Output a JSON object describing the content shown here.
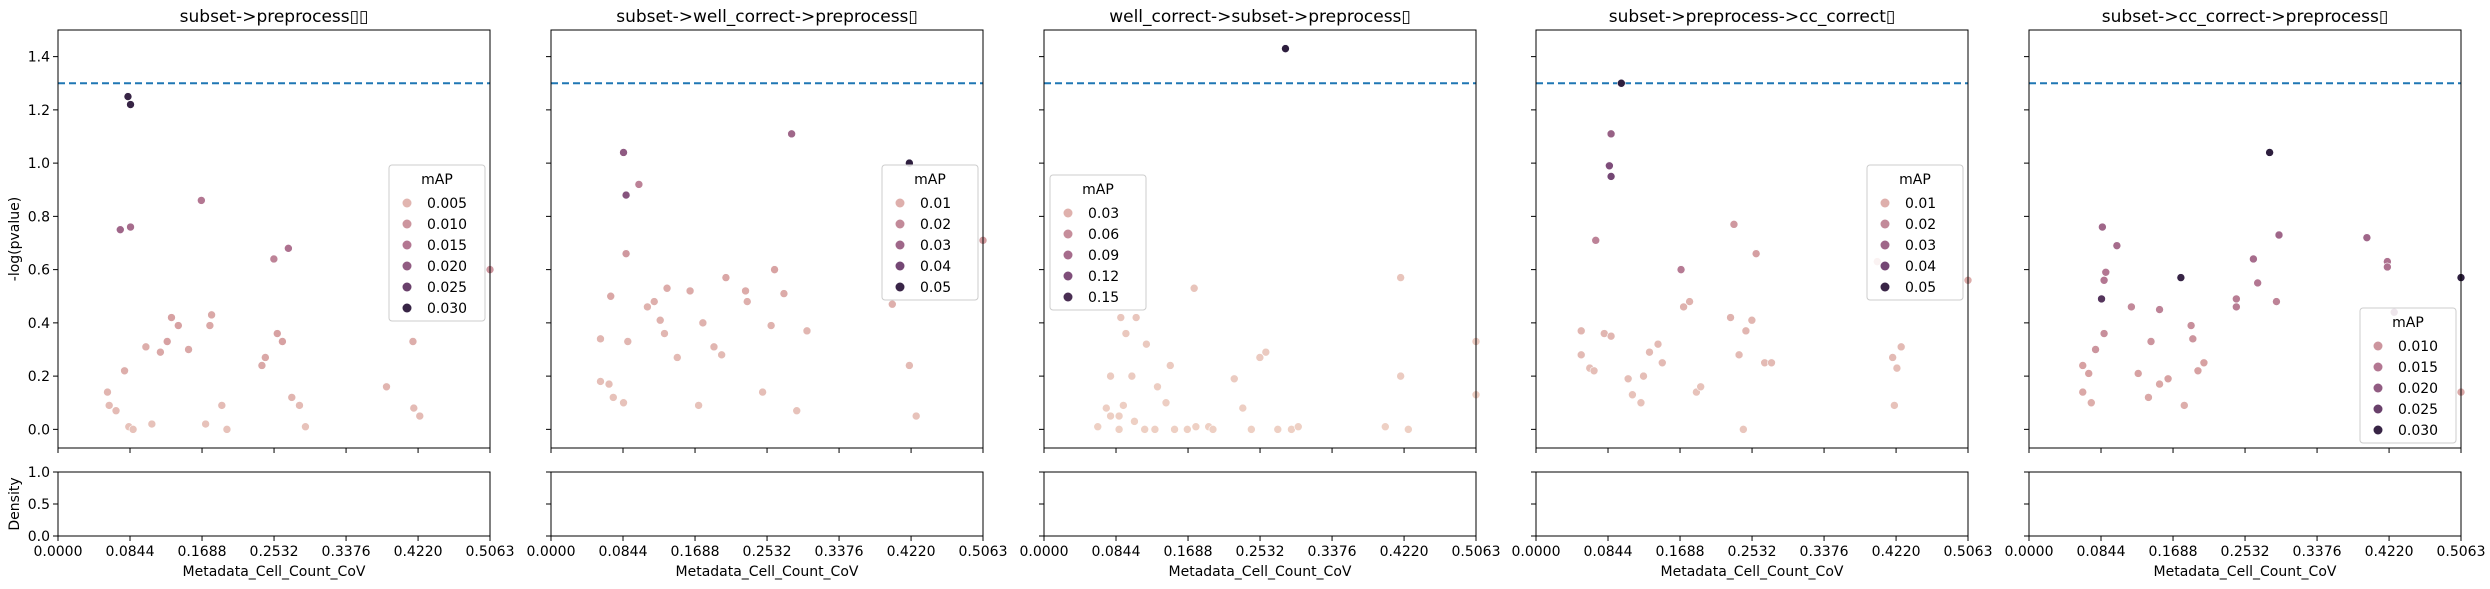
{
  "x_axis": {
    "label": "Metadata_Cell_Count_CoV",
    "ticks": [
      0,
      0.0844,
      0.1688,
      0.2532,
      0.3376,
      0.422,
      0.5063
    ],
    "tick_labels": [
      "0.0000",
      "0.0844",
      "0.1688",
      "0.2532",
      "0.3376",
      "0.4220",
      "0.5063"
    ],
    "lim": [
      0,
      0.5063
    ]
  },
  "y_axis": {
    "label": "-log(pvalue)",
    "ticks": [
      0,
      0.2,
      0.4,
      0.6,
      0.8,
      1.0,
      1.2,
      1.4
    ],
    "tick_labels": [
      "0.0",
      "0.2",
      "0.4",
      "0.6",
      "0.8",
      "1.0",
      "1.2",
      "1.4"
    ],
    "lim": [
      -0.07,
      1.5
    ]
  },
  "density_axis": {
    "label": "Density",
    "ticks": [
      0,
      0.5,
      1.0
    ],
    "tick_labels": [
      "0.0",
      "0.5",
      "1.0"
    ],
    "lim": [
      0,
      1
    ]
  },
  "threshold": {
    "value": 1.3,
    "color": "#1f77b4",
    "style": "dashed"
  },
  "colors": {
    "low": "#f0d5c8",
    "high": "#2d1e3e",
    "threshold_line": "#1f77b4"
  },
  "chart_data": [
    {
      "type": "scatter",
      "title": "subset->preprocess▯▯",
      "legend": {
        "title": "mAP",
        "position": "center-right",
        "entries": [
          "0.005",
          "0.010",
          "0.015",
          "0.020",
          "0.025",
          "0.030"
        ],
        "values": [
          0.005,
          0.01,
          0.015,
          0.02,
          0.025,
          0.03
        ]
      },
      "cmax": 0.031,
      "points": [
        {
          "x": 0.082,
          "y": 1.25,
          "c": 0.03
        },
        {
          "x": 0.085,
          "y": 1.22,
          "c": 0.03
        },
        {
          "x": 0.073,
          "y": 0.75,
          "c": 0.018
        },
        {
          "x": 0.085,
          "y": 0.76,
          "c": 0.017
        },
        {
          "x": 0.168,
          "y": 0.86,
          "c": 0.015
        },
        {
          "x": 0.27,
          "y": 0.68,
          "c": 0.016
        },
        {
          "x": 0.253,
          "y": 0.64,
          "c": 0.013
        },
        {
          "x": 0.078,
          "y": 0.22,
          "c": 0.006
        },
        {
          "x": 0.058,
          "y": 0.14,
          "c": 0.005
        },
        {
          "x": 0.06,
          "y": 0.09,
          "c": 0.004
        },
        {
          "x": 0.068,
          "y": 0.07,
          "c": 0.004
        },
        {
          "x": 0.083,
          "y": 0.01,
          "c": 0.003
        },
        {
          "x": 0.088,
          "y": 0.0,
          "c": 0.003
        },
        {
          "x": 0.103,
          "y": 0.31,
          "c": 0.006
        },
        {
          "x": 0.12,
          "y": 0.29,
          "c": 0.007
        },
        {
          "x": 0.128,
          "y": 0.33,
          "c": 0.008
        },
        {
          "x": 0.133,
          "y": 0.42,
          "c": 0.008
        },
        {
          "x": 0.141,
          "y": 0.39,
          "c": 0.008
        },
        {
          "x": 0.153,
          "y": 0.3,
          "c": 0.007
        },
        {
          "x": 0.11,
          "y": 0.02,
          "c": 0.003
        },
        {
          "x": 0.18,
          "y": 0.43,
          "c": 0.007
        },
        {
          "x": 0.178,
          "y": 0.39,
          "c": 0.007
        },
        {
          "x": 0.192,
          "y": 0.09,
          "c": 0.004
        },
        {
          "x": 0.173,
          "y": 0.02,
          "c": 0.003
        },
        {
          "x": 0.198,
          "y": 0.0,
          "c": 0.003
        },
        {
          "x": 0.239,
          "y": 0.24,
          "c": 0.007
        },
        {
          "x": 0.243,
          "y": 0.27,
          "c": 0.007
        },
        {
          "x": 0.257,
          "y": 0.36,
          "c": 0.008
        },
        {
          "x": 0.263,
          "y": 0.33,
          "c": 0.008
        },
        {
          "x": 0.274,
          "y": 0.12,
          "c": 0.005
        },
        {
          "x": 0.283,
          "y": 0.09,
          "c": 0.004
        },
        {
          "x": 0.29,
          "y": 0.01,
          "c": 0.003
        },
        {
          "x": 0.385,
          "y": 0.16,
          "c": 0.005
        },
        {
          "x": 0.416,
          "y": 0.33,
          "c": 0.006
        },
        {
          "x": 0.417,
          "y": 0.08,
          "c": 0.004
        },
        {
          "x": 0.424,
          "y": 0.05,
          "c": 0.004
        },
        {
          "x": 0.5063,
          "y": 0.6,
          "c": 0.01
        }
      ]
    },
    {
      "type": "scatter",
      "title": "subset->well_correct->preprocess▯",
      "legend": {
        "title": "mAP",
        "position": "center-right",
        "entries": [
          "0.01",
          "0.02",
          "0.03",
          "0.04",
          "0.05"
        ],
        "values": [
          0.01,
          0.02,
          0.03,
          0.04,
          0.05
        ]
      },
      "cmax": 0.052,
      "points": [
        {
          "x": 0.42,
          "y": 1.0,
          "c": 0.052
        },
        {
          "x": 0.282,
          "y": 1.11,
          "c": 0.03
        },
        {
          "x": 0.085,
          "y": 1.04,
          "c": 0.034
        },
        {
          "x": 0.088,
          "y": 0.88,
          "c": 0.036
        },
        {
          "x": 0.103,
          "y": 0.92,
          "c": 0.022
        },
        {
          "x": 0.088,
          "y": 0.66,
          "c": 0.016
        },
        {
          "x": 0.07,
          "y": 0.5,
          "c": 0.012
        },
        {
          "x": 0.058,
          "y": 0.34,
          "c": 0.008
        },
        {
          "x": 0.09,
          "y": 0.33,
          "c": 0.008
        },
        {
          "x": 0.058,
          "y": 0.18,
          "c": 0.006
        },
        {
          "x": 0.068,
          "y": 0.17,
          "c": 0.006
        },
        {
          "x": 0.073,
          "y": 0.12,
          "c": 0.005
        },
        {
          "x": 0.085,
          "y": 0.1,
          "c": 0.005
        },
        {
          "x": 0.113,
          "y": 0.46,
          "c": 0.009
        },
        {
          "x": 0.121,
          "y": 0.48,
          "c": 0.01
        },
        {
          "x": 0.136,
          "y": 0.53,
          "c": 0.011
        },
        {
          "x": 0.128,
          "y": 0.41,
          "c": 0.009
        },
        {
          "x": 0.133,
          "y": 0.36,
          "c": 0.008
        },
        {
          "x": 0.148,
          "y": 0.27,
          "c": 0.007
        },
        {
          "x": 0.163,
          "y": 0.52,
          "c": 0.011
        },
        {
          "x": 0.178,
          "y": 0.4,
          "c": 0.009
        },
        {
          "x": 0.191,
          "y": 0.31,
          "c": 0.008
        },
        {
          "x": 0.2,
          "y": 0.28,
          "c": 0.007
        },
        {
          "x": 0.173,
          "y": 0.09,
          "c": 0.005
        },
        {
          "x": 0.205,
          "y": 0.57,
          "c": 0.012
        },
        {
          "x": 0.228,
          "y": 0.52,
          "c": 0.011
        },
        {
          "x": 0.23,
          "y": 0.48,
          "c": 0.01
        },
        {
          "x": 0.262,
          "y": 0.6,
          "c": 0.013
        },
        {
          "x": 0.273,
          "y": 0.51,
          "c": 0.011
        },
        {
          "x": 0.258,
          "y": 0.39,
          "c": 0.009
        },
        {
          "x": 0.248,
          "y": 0.14,
          "c": 0.006
        },
        {
          "x": 0.3,
          "y": 0.37,
          "c": 0.008
        },
        {
          "x": 0.288,
          "y": 0.07,
          "c": 0.005
        },
        {
          "x": 0.4,
          "y": 0.47,
          "c": 0.01
        },
        {
          "x": 0.42,
          "y": 0.24,
          "c": 0.007
        },
        {
          "x": 0.428,
          "y": 0.05,
          "c": 0.005
        },
        {
          "x": 0.5063,
          "y": 0.71,
          "c": 0.015
        }
      ]
    },
    {
      "type": "scatter",
      "title": "well_correct->subset->preprocess▯",
      "legend": {
        "title": "mAP",
        "position": "center-left",
        "entries": [
          "0.03",
          "0.06",
          "0.09",
          "0.12",
          "0.15"
        ],
        "values": [
          0.03,
          0.06,
          0.09,
          0.12,
          0.15
        ]
      },
      "cmax": 0.165,
      "points": [
        {
          "x": 0.283,
          "y": 1.43,
          "c": 0.165
        },
        {
          "x": 0.176,
          "y": 0.53,
          "c": 0.014
        },
        {
          "x": 0.418,
          "y": 0.57,
          "c": 0.014
        },
        {
          "x": 0.09,
          "y": 0.42,
          "c": 0.012
        },
        {
          "x": 0.108,
          "y": 0.42,
          "c": 0.012
        },
        {
          "x": 0.096,
          "y": 0.36,
          "c": 0.011
        },
        {
          "x": 0.12,
          "y": 0.32,
          "c": 0.01
        },
        {
          "x": 0.078,
          "y": 0.2,
          "c": 0.008
        },
        {
          "x": 0.103,
          "y": 0.2,
          "c": 0.008
        },
        {
          "x": 0.148,
          "y": 0.24,
          "c": 0.009
        },
        {
          "x": 0.133,
          "y": 0.16,
          "c": 0.007
        },
        {
          "x": 0.143,
          "y": 0.1,
          "c": 0.006
        },
        {
          "x": 0.073,
          "y": 0.08,
          "c": 0.006
        },
        {
          "x": 0.078,
          "y": 0.05,
          "c": 0.005
        },
        {
          "x": 0.088,
          "y": 0.05,
          "c": 0.005
        },
        {
          "x": 0.093,
          "y": 0.09,
          "c": 0.006
        },
        {
          "x": 0.063,
          "y": 0.01,
          "c": 0.004
        },
        {
          "x": 0.088,
          "y": 0.0,
          "c": 0.004
        },
        {
          "x": 0.106,
          "y": 0.03,
          "c": 0.004
        },
        {
          "x": 0.118,
          "y": 0.0,
          "c": 0.004
        },
        {
          "x": 0.13,
          "y": 0.0,
          "c": 0.004
        },
        {
          "x": 0.153,
          "y": 0.0,
          "c": 0.004
        },
        {
          "x": 0.168,
          "y": 0.0,
          "c": 0.004
        },
        {
          "x": 0.178,
          "y": 0.01,
          "c": 0.004
        },
        {
          "x": 0.193,
          "y": 0.01,
          "c": 0.004
        },
        {
          "x": 0.198,
          "y": 0.0,
          "c": 0.004
        },
        {
          "x": 0.223,
          "y": 0.19,
          "c": 0.008
        },
        {
          "x": 0.233,
          "y": 0.08,
          "c": 0.006
        },
        {
          "x": 0.243,
          "y": 0.0,
          "c": 0.004
        },
        {
          "x": 0.253,
          "y": 0.27,
          "c": 0.009
        },
        {
          "x": 0.26,
          "y": 0.29,
          "c": 0.009
        },
        {
          "x": 0.274,
          "y": 0.0,
          "c": 0.004
        },
        {
          "x": 0.29,
          "y": 0.0,
          "c": 0.004
        },
        {
          "x": 0.298,
          "y": 0.01,
          "c": 0.004
        },
        {
          "x": 0.4,
          "y": 0.01,
          "c": 0.004
        },
        {
          "x": 0.427,
          "y": 0.0,
          "c": 0.004
        },
        {
          "x": 0.418,
          "y": 0.2,
          "c": 0.008
        },
        {
          "x": 0.5063,
          "y": 0.33,
          "c": 0.01
        },
        {
          "x": 0.5063,
          "y": 0.13,
          "c": 0.007
        }
      ]
    },
    {
      "type": "scatter",
      "title": "subset->preprocess->cc_correct▯",
      "legend": {
        "title": "mAP",
        "position": "center-right",
        "entries": [
          "0.01",
          "0.02",
          "0.03",
          "0.04",
          "0.05"
        ],
        "values": [
          0.01,
          0.02,
          0.03,
          0.04,
          0.05
        ]
      },
      "cmax": 0.052,
      "points": [
        {
          "x": 0.1,
          "y": 1.3,
          "c": 0.052
        },
        {
          "x": 0.088,
          "y": 1.11,
          "c": 0.032
        },
        {
          "x": 0.086,
          "y": 0.99,
          "c": 0.038
        },
        {
          "x": 0.088,
          "y": 0.95,
          "c": 0.04
        },
        {
          "x": 0.07,
          "y": 0.71,
          "c": 0.022
        },
        {
          "x": 0.17,
          "y": 0.6,
          "c": 0.024
        },
        {
          "x": 0.232,
          "y": 0.77,
          "c": 0.016
        },
        {
          "x": 0.258,
          "y": 0.66,
          "c": 0.014
        },
        {
          "x": 0.053,
          "y": 0.37,
          "c": 0.008
        },
        {
          "x": 0.08,
          "y": 0.36,
          "c": 0.008
        },
        {
          "x": 0.088,
          "y": 0.35,
          "c": 0.008
        },
        {
          "x": 0.053,
          "y": 0.28,
          "c": 0.007
        },
        {
          "x": 0.063,
          "y": 0.23,
          "c": 0.006
        },
        {
          "x": 0.068,
          "y": 0.22,
          "c": 0.006
        },
        {
          "x": 0.108,
          "y": 0.19,
          "c": 0.006
        },
        {
          "x": 0.113,
          "y": 0.13,
          "c": 0.005
        },
        {
          "x": 0.123,
          "y": 0.1,
          "c": 0.005
        },
        {
          "x": 0.126,
          "y": 0.2,
          "c": 0.006
        },
        {
          "x": 0.133,
          "y": 0.29,
          "c": 0.007
        },
        {
          "x": 0.143,
          "y": 0.32,
          "c": 0.007
        },
        {
          "x": 0.148,
          "y": 0.25,
          "c": 0.007
        },
        {
          "x": 0.173,
          "y": 0.46,
          "c": 0.009
        },
        {
          "x": 0.18,
          "y": 0.48,
          "c": 0.009
        },
        {
          "x": 0.188,
          "y": 0.14,
          "c": 0.005
        },
        {
          "x": 0.193,
          "y": 0.16,
          "c": 0.005
        },
        {
          "x": 0.228,
          "y": 0.42,
          "c": 0.009
        },
        {
          "x": 0.238,
          "y": 0.28,
          "c": 0.007
        },
        {
          "x": 0.246,
          "y": 0.37,
          "c": 0.008
        },
        {
          "x": 0.253,
          "y": 0.41,
          "c": 0.008
        },
        {
          "x": 0.268,
          "y": 0.25,
          "c": 0.007
        },
        {
          "x": 0.276,
          "y": 0.25,
          "c": 0.007
        },
        {
          "x": 0.243,
          "y": 0.0,
          "c": 0.004
        },
        {
          "x": 0.418,
          "y": 0.27,
          "c": 0.007
        },
        {
          "x": 0.428,
          "y": 0.31,
          "c": 0.007
        },
        {
          "x": 0.423,
          "y": 0.23,
          "c": 0.006
        },
        {
          "x": 0.42,
          "y": 0.09,
          "c": 0.005
        },
        {
          "x": 0.4,
          "y": 0.63,
          "c": 0.012
        },
        {
          "x": 0.5063,
          "y": 0.56,
          "c": 0.011
        }
      ]
    },
    {
      "type": "scatter",
      "title": "subset->cc_correct->preprocess▯",
      "legend": {
        "title": "mAP",
        "position": "bottom-right",
        "entries": [
          "0.010",
          "0.015",
          "0.020",
          "0.025",
          "0.030"
        ],
        "values": [
          0.01,
          0.015,
          0.02,
          0.025,
          0.03
        ]
      },
      "cmax": 0.031,
      "points": [
        {
          "x": 0.282,
          "y": 1.04,
          "c": 0.031
        },
        {
          "x": 0.178,
          "y": 0.57,
          "c": 0.03
        },
        {
          "x": 0.5063,
          "y": 0.57,
          "c": 0.031
        },
        {
          "x": 0.085,
          "y": 0.49,
          "c": 0.027
        },
        {
          "x": 0.086,
          "y": 0.76,
          "c": 0.018
        },
        {
          "x": 0.103,
          "y": 0.69,
          "c": 0.017
        },
        {
          "x": 0.293,
          "y": 0.73,
          "c": 0.018
        },
        {
          "x": 0.396,
          "y": 0.72,
          "c": 0.018
        },
        {
          "x": 0.42,
          "y": 0.63,
          "c": 0.016
        },
        {
          "x": 0.42,
          "y": 0.61,
          "c": 0.016
        },
        {
          "x": 0.428,
          "y": 0.44,
          "c": 0.021
        },
        {
          "x": 0.263,
          "y": 0.64,
          "c": 0.017
        },
        {
          "x": 0.243,
          "y": 0.49,
          "c": 0.014
        },
        {
          "x": 0.243,
          "y": 0.46,
          "c": 0.014
        },
        {
          "x": 0.268,
          "y": 0.55,
          "c": 0.015
        },
        {
          "x": 0.29,
          "y": 0.48,
          "c": 0.013
        },
        {
          "x": 0.088,
          "y": 0.56,
          "c": 0.015
        },
        {
          "x": 0.09,
          "y": 0.59,
          "c": 0.015
        },
        {
          "x": 0.153,
          "y": 0.45,
          "c": 0.013
        },
        {
          "x": 0.078,
          "y": 0.3,
          "c": 0.01
        },
        {
          "x": 0.063,
          "y": 0.24,
          "c": 0.008
        },
        {
          "x": 0.07,
          "y": 0.21,
          "c": 0.008
        },
        {
          "x": 0.063,
          "y": 0.14,
          "c": 0.007
        },
        {
          "x": 0.073,
          "y": 0.1,
          "c": 0.006
        },
        {
          "x": 0.088,
          "y": 0.36,
          "c": 0.011
        },
        {
          "x": 0.12,
          "y": 0.46,
          "c": 0.012
        },
        {
          "x": 0.128,
          "y": 0.21,
          "c": 0.008
        },
        {
          "x": 0.143,
          "y": 0.33,
          "c": 0.01
        },
        {
          "x": 0.14,
          "y": 0.12,
          "c": 0.007
        },
        {
          "x": 0.153,
          "y": 0.17,
          "c": 0.007
        },
        {
          "x": 0.163,
          "y": 0.19,
          "c": 0.008
        },
        {
          "x": 0.182,
          "y": 0.09,
          "c": 0.006
        },
        {
          "x": 0.19,
          "y": 0.39,
          "c": 0.011
        },
        {
          "x": 0.192,
          "y": 0.34,
          "c": 0.01
        },
        {
          "x": 0.198,
          "y": 0.22,
          "c": 0.008
        },
        {
          "x": 0.205,
          "y": 0.25,
          "c": 0.008
        },
        {
          "x": 0.5063,
          "y": 0.14,
          "c": 0.007
        }
      ]
    }
  ]
}
